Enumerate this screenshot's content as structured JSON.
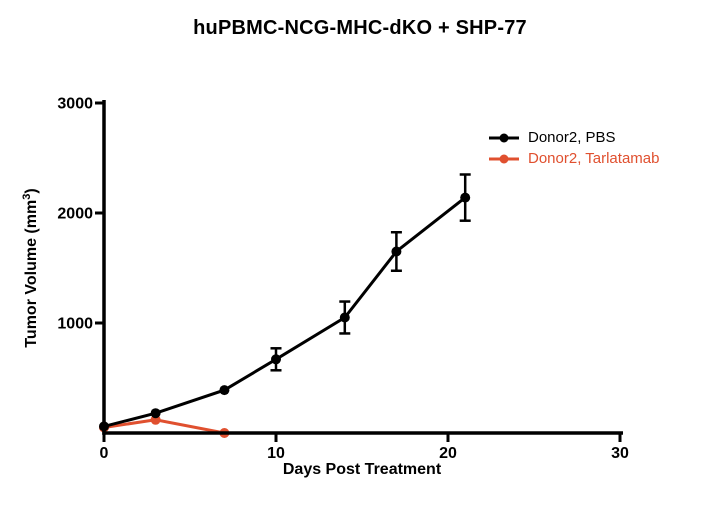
{
  "title": "huPBMC-NCG-MHC-dKO + SHP-77",
  "chart_data": {
    "type": "line",
    "title": "huPBMC-NCG-MHC-dKO + SHP-77",
    "xlabel": "Days Post Treatment",
    "ylabel": "Tumor Volume (mm³)",
    "ylabel_parts": {
      "prefix": "Tumor Volume (mm",
      "sup": "3",
      "suffix": ")"
    },
    "xlim": [
      0,
      30
    ],
    "ylim": [
      0,
      3000
    ],
    "x_ticks": [
      0,
      10,
      20,
      30
    ],
    "y_ticks": [
      1000,
      2000,
      3000
    ],
    "grid": false,
    "legend_position": "inside-top-right",
    "series": [
      {
        "name": "Donor2, PBS",
        "color": "#000000",
        "marker": "circle",
        "x": [
          0,
          3,
          7,
          10,
          14,
          17,
          21
        ],
        "y": [
          60,
          180,
          390,
          670,
          1050,
          1650,
          2140
        ],
        "yerr": [
          0,
          0,
          0,
          100,
          145,
          175,
          210
        ]
      },
      {
        "name": "Donor2, Tarlatamab",
        "color": "#E0502F",
        "marker": "circle",
        "x": [
          0,
          3,
          7
        ],
        "y": [
          50,
          120,
          0
        ],
        "yerr": [
          0,
          0,
          0
        ]
      }
    ]
  },
  "legend": {
    "items": [
      {
        "label": "Donor2, PBS",
        "color": "#000000"
      },
      {
        "label": "Donor2, Tarlatamab",
        "color": "#E0502F"
      }
    ]
  },
  "colors": {
    "axis": "#000000",
    "background": "#FFFFFF"
  }
}
